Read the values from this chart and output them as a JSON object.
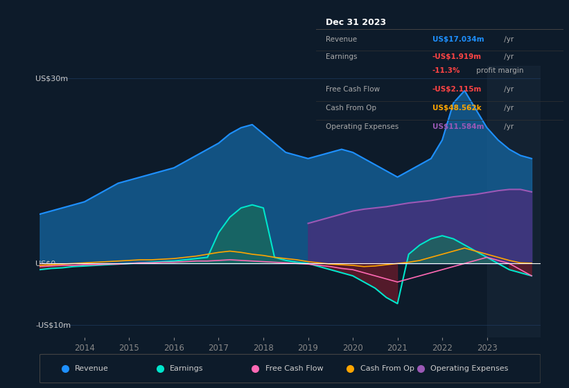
{
  "bg_color": "#0d1b2a",
  "plot_bg_color": "#0d1b2a",
  "ylabel_top": "US$30m",
  "ylabel_zero": "US$0",
  "ylabel_bottom": "-US$10m",
  "ylim": [
    -12,
    32
  ],
  "xlim": [
    2013.0,
    2024.2
  ],
  "yticks": [
    -10,
    0,
    30
  ],
  "xticks": [
    2014,
    2015,
    2016,
    2017,
    2018,
    2019,
    2020,
    2021,
    2022,
    2023
  ],
  "grid_color": "#1e3a5f",
  "zero_line_color": "#ffffff",
  "series_colors": {
    "revenue": "#1e90ff",
    "earnings": "#00e5cc",
    "free_cash_flow": "#ff69b4",
    "cash_from_op": "#ffa500",
    "operating_expenses": "#9b59b6"
  },
  "fill_colors": {
    "revenue": "#1565a0",
    "earnings_pos": "#1a6b5a",
    "earnings_neg": "#6b1a2a",
    "operating_expenses": "#4b2d7a"
  },
  "info_box": {
    "title": "Dec 31 2023",
    "rows": [
      {
        "label": "Revenue",
        "value": "US$17.034m",
        "value_color": "#1e90ff",
        "suffix": " /yr"
      },
      {
        "label": "Earnings",
        "value": "-US$1.919m",
        "value_color": "#ff4444",
        "suffix": " /yr"
      },
      {
        "label": "",
        "value": "-11.3%",
        "value_color": "#ff4444",
        "suffix": " profit margin"
      },
      {
        "label": "Free Cash Flow",
        "value": "-US$2.115m",
        "value_color": "#ff4444",
        "suffix": " /yr"
      },
      {
        "label": "Cash From Op",
        "value": "US$48.562k",
        "value_color": "#ffa500",
        "suffix": " /yr"
      },
      {
        "label": "Operating Expenses",
        "value": "US$11.584m",
        "value_color": "#9b59b6",
        "suffix": " /yr"
      }
    ]
  },
  "legend": [
    {
      "label": "Revenue",
      "color": "#1e90ff"
    },
    {
      "label": "Earnings",
      "color": "#00e5cc"
    },
    {
      "label": "Free Cash Flow",
      "color": "#ff69b4"
    },
    {
      "label": "Cash From Op",
      "color": "#ffa500"
    },
    {
      "label": "Operating Expenses",
      "color": "#9b59b6"
    }
  ],
  "x": [
    2013.0,
    2013.25,
    2013.5,
    2013.75,
    2014.0,
    2014.25,
    2014.5,
    2014.75,
    2015.0,
    2015.25,
    2015.5,
    2015.75,
    2016.0,
    2016.25,
    2016.5,
    2016.75,
    2017.0,
    2017.25,
    2017.5,
    2017.75,
    2018.0,
    2018.25,
    2018.5,
    2018.75,
    2019.0,
    2019.25,
    2019.5,
    2019.75,
    2020.0,
    2020.25,
    2020.5,
    2020.75,
    2021.0,
    2021.25,
    2021.5,
    2021.75,
    2022.0,
    2022.25,
    2022.5,
    2022.75,
    2023.0,
    2023.25,
    2023.5,
    2023.75,
    2024.0
  ],
  "revenue": [
    8.0,
    8.5,
    9.0,
    9.5,
    10.0,
    11.0,
    12.0,
    13.0,
    13.5,
    14.0,
    14.5,
    15.0,
    15.5,
    16.5,
    17.5,
    18.5,
    19.5,
    21.0,
    22.0,
    22.5,
    21.0,
    19.5,
    18.0,
    17.5,
    17.0,
    17.5,
    18.0,
    18.5,
    18.0,
    17.0,
    16.0,
    15.0,
    14.0,
    15.0,
    16.0,
    17.0,
    20.0,
    26.0,
    28.0,
    25.0,
    22.0,
    20.0,
    18.5,
    17.5,
    17.0
  ],
  "earnings": [
    -1.0,
    -0.8,
    -0.7,
    -0.5,
    -0.4,
    -0.3,
    -0.2,
    -0.1,
    0.0,
    0.1,
    0.2,
    0.3,
    0.4,
    0.6,
    0.8,
    1.0,
    5.0,
    7.5,
    9.0,
    9.5,
    9.0,
    1.0,
    0.5,
    0.2,
    0.0,
    -0.5,
    -1.0,
    -1.5,
    -2.0,
    -3.0,
    -4.0,
    -5.5,
    -6.5,
    1.5,
    3.0,
    4.0,
    4.5,
    4.0,
    3.0,
    2.0,
    1.0,
    0.0,
    -1.0,
    -1.5,
    -2.0
  ],
  "free_cash_flow": [
    -0.5,
    -0.4,
    -0.3,
    -0.3,
    -0.2,
    -0.2,
    -0.1,
    -0.1,
    0.0,
    0.1,
    0.1,
    0.2,
    0.2,
    0.3,
    0.4,
    0.4,
    0.5,
    0.6,
    0.5,
    0.4,
    0.3,
    0.2,
    0.1,
    0.0,
    -0.1,
    -0.3,
    -0.5,
    -0.8,
    -1.0,
    -1.5,
    -2.0,
    -2.5,
    -3.0,
    -2.5,
    -2.0,
    -1.5,
    -1.0,
    -0.5,
    0.0,
    0.5,
    1.0,
    0.5,
    0.0,
    -1.0,
    -2.0
  ],
  "cash_from_op": [
    -0.3,
    -0.2,
    -0.1,
    0.0,
    0.1,
    0.2,
    0.3,
    0.4,
    0.5,
    0.6,
    0.6,
    0.7,
    0.8,
    1.0,
    1.2,
    1.5,
    1.8,
    2.0,
    1.8,
    1.5,
    1.3,
    1.0,
    0.8,
    0.6,
    0.3,
    0.1,
    -0.1,
    -0.2,
    -0.3,
    -0.5,
    -0.4,
    -0.2,
    0.0,
    0.2,
    0.5,
    1.0,
    1.5,
    2.0,
    2.5,
    2.0,
    1.5,
    1.0,
    0.5,
    0.1,
    0.05
  ],
  "operating_expenses": [
    0.0,
    0.0,
    0.0,
    0.0,
    0.0,
    0.0,
    0.0,
    0.0,
    0.0,
    0.0,
    0.0,
    0.0,
    0.0,
    0.0,
    0.0,
    0.0,
    0.0,
    0.0,
    0.0,
    0.0,
    0.0,
    0.0,
    0.0,
    0.0,
    6.5,
    7.0,
    7.5,
    8.0,
    8.5,
    8.8,
    9.0,
    9.2,
    9.5,
    9.8,
    10.0,
    10.2,
    10.5,
    10.8,
    11.0,
    11.2,
    11.5,
    11.8,
    12.0,
    12.0,
    11.6
  ]
}
